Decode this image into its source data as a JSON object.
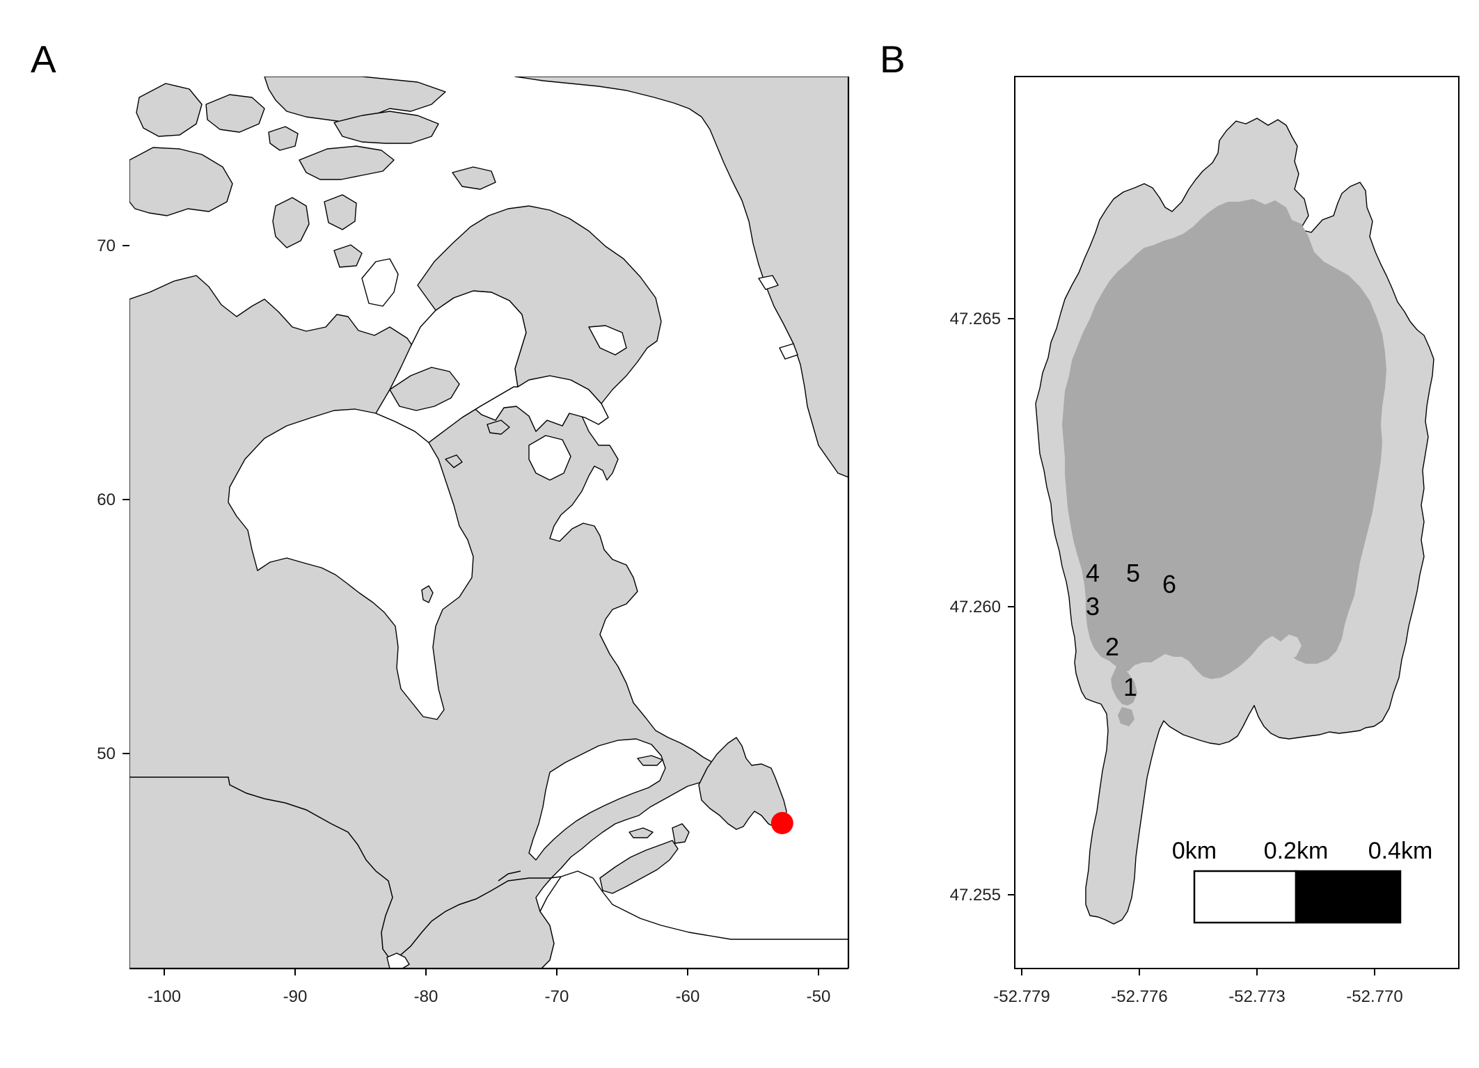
{
  "panels": {
    "A": {
      "letter": "A",
      "x_ticks": [
        "-100",
        "-90",
        "-80",
        "-70",
        "-60",
        "-50"
      ],
      "y_ticks": [
        "70",
        "60",
        "50"
      ],
      "marker": {
        "lon": -52.776,
        "lat": 47.26,
        "color": "#ff0000"
      }
    },
    "B": {
      "letter": "B",
      "x_ticks": [
        "-52.779",
        "-52.776",
        "-52.773",
        "-52.770"
      ],
      "y_ticks": [
        "47.265",
        "47.260",
        "47.255"
      ],
      "sites": [
        "1",
        "2",
        "3",
        "4",
        "5",
        "6"
      ],
      "scale_bar": {
        "labels": [
          "0km",
          "0.2km",
          "0.4km"
        ]
      }
    }
  },
  "colors": {
    "land": "#d3d3d3",
    "lake_outer": "#d3d3d3",
    "lake_deep": "#a9a9a9",
    "marker": "#ff0000"
  }
}
